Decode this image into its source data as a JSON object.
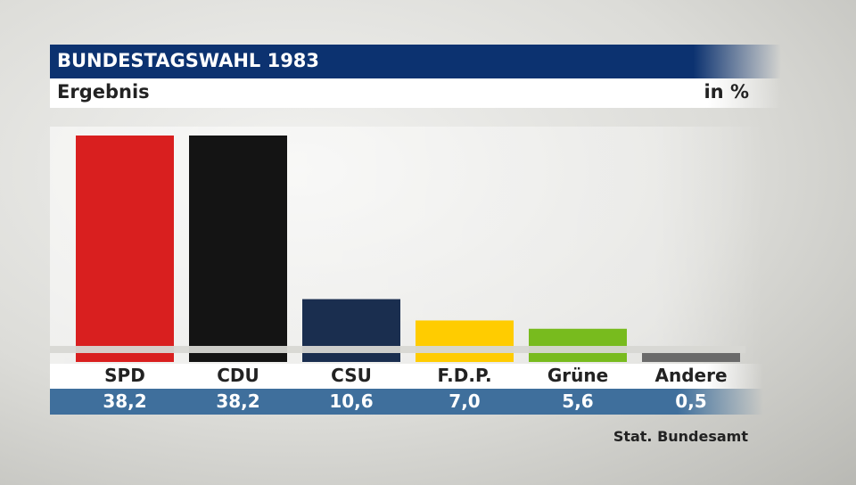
{
  "header": {
    "title": "BUNDESTAGSWAHL 1983",
    "subtitle": "Ergebnis",
    "unit": "in %"
  },
  "source": "Stat. Bundesamt",
  "chart_data": {
    "type": "bar",
    "title": "BUNDESTAGSWAHL 1983",
    "subtitle": "Ergebnis",
    "ylabel": "in %",
    "categories": [
      "SPD",
      "CDU",
      "CSU",
      "F.D.P.",
      "Grüne",
      "Andere"
    ],
    "values": [
      38.2,
      38.2,
      10.6,
      7.0,
      5.6,
      0.5
    ],
    "value_labels": [
      "38,2",
      "38,2",
      "10,6",
      "7,0",
      "5,6",
      "0,5"
    ],
    "colors": [
      "#d91f1f",
      "#141414",
      "#1a2e4f",
      "#ffcc00",
      "#78bb1e",
      "#6a6a6a"
    ],
    "ylim": [
      0,
      38.2
    ],
    "grid": false,
    "legend": "none"
  }
}
